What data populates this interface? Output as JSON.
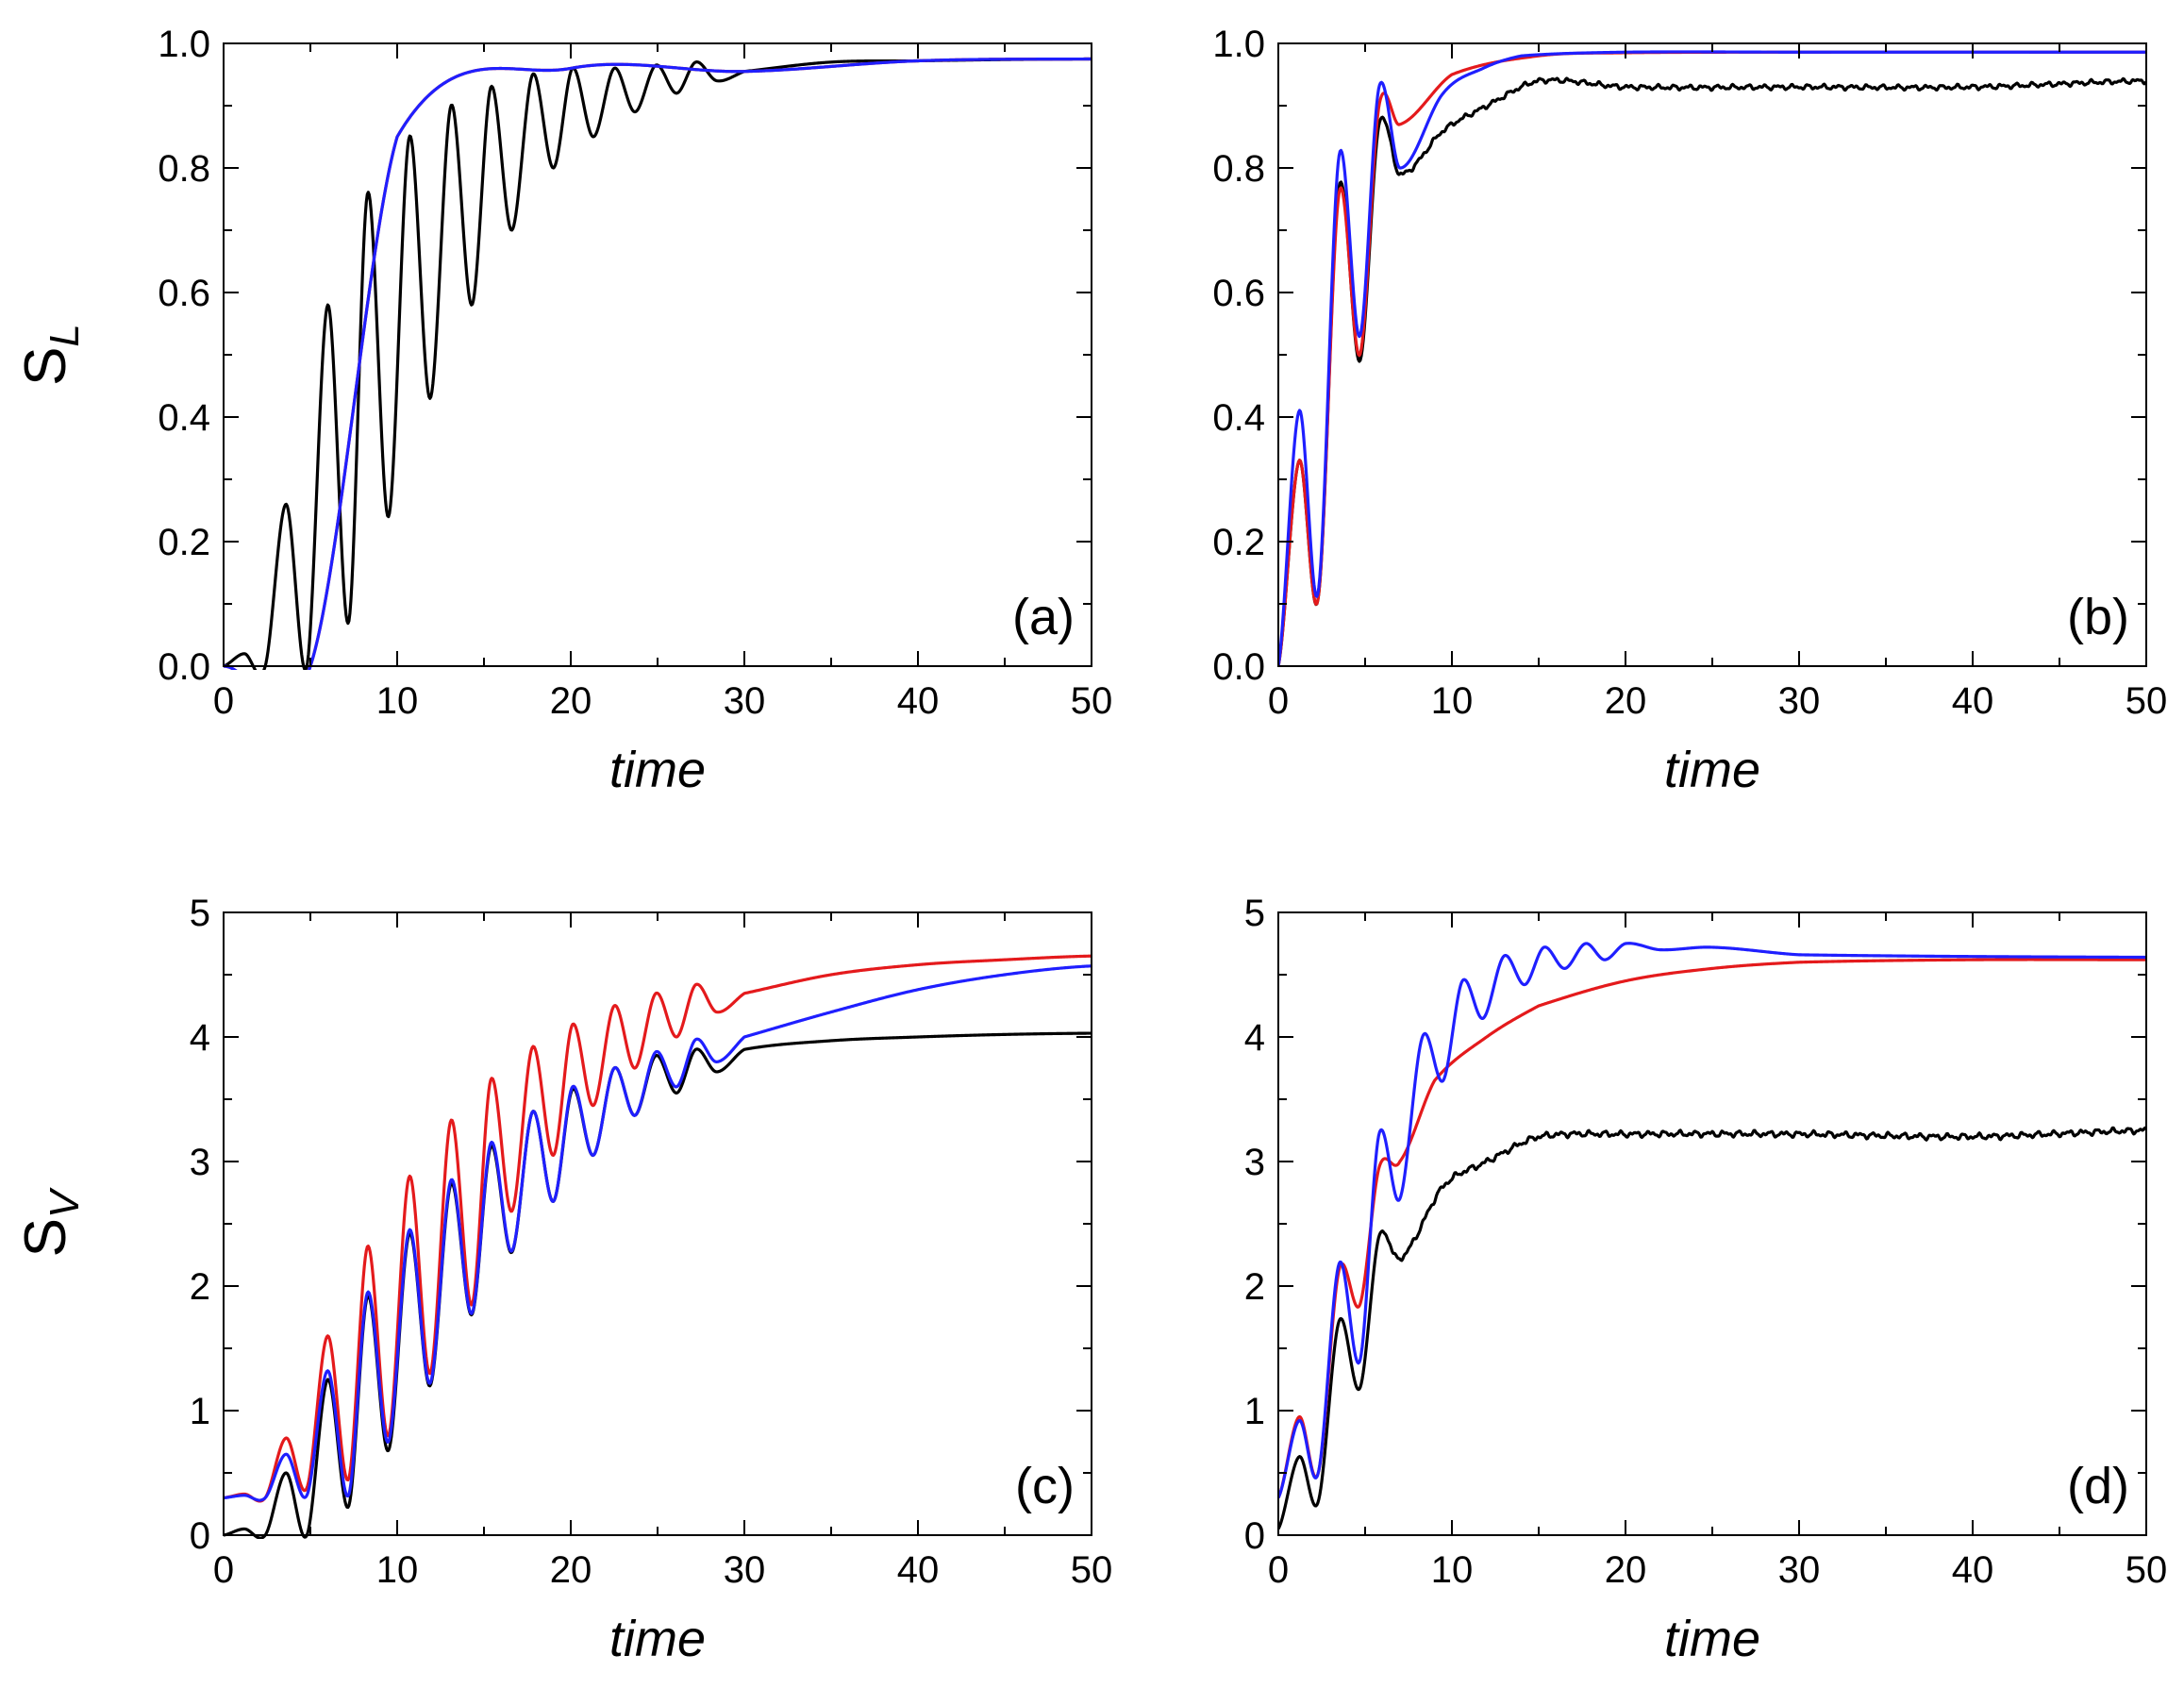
{
  "colors": {
    "series_black": "#000000",
    "series_red": "#e41a1c",
    "series_blue": "#1f1fff"
  },
  "chart_data": [
    {
      "panel": "(a)",
      "type": "line",
      "xlabel": "time",
      "ylabel": "S",
      "ylabel_subscript": "L",
      "xlim": [
        0,
        50
      ],
      "ylim": [
        0,
        1
      ],
      "xticks": [
        "0",
        "10",
        "20",
        "30",
        "40",
        "50"
      ],
      "yticks": [
        "0.0",
        "0.2",
        "0.4",
        "0.6",
        "0.8",
        "1.0"
      ],
      "model": {
        "kind": "oscillating",
        "period": 2.36,
        "phase_t": 1.22,
        "rise_tau": 4.8,
        "rise_delay": 2.5,
        "amp0": 0.78,
        "damp_tau": 4.6,
        "final": 0.975
      },
      "series": [
        {
          "name": "black",
          "color_key": "series_black",
          "scale": 1.0,
          "offset": 0.0,
          "x": [
            0,
            1.2,
            2.4,
            3.6,
            4.8,
            6.0,
            7.2,
            8.3,
            9.5,
            10.7,
            11.9,
            13.1,
            14.3,
            15.4,
            16.6,
            17.8,
            19.0,
            20.1,
            21.3,
            22.5,
            23.7,
            24.9,
            26.1,
            27.2,
            28.4,
            30,
            35,
            40,
            45,
            50
          ],
          "values": [
            0.0,
            0.02,
            0.0,
            0.26,
            0.0,
            0.58,
            0.07,
            0.76,
            0.24,
            0.85,
            0.43,
            0.9,
            0.58,
            0.93,
            0.7,
            0.95,
            0.8,
            0.96,
            0.85,
            0.96,
            0.89,
            0.965,
            0.92,
            0.97,
            0.94,
            0.955,
            0.97,
            0.972,
            0.974,
            0.975
          ]
        },
        {
          "name": "red",
          "color_key": "series_red",
          "scale": 1.0,
          "offset": 0.0,
          "x": [
            0,
            5,
            10,
            20,
            30,
            40,
            50
          ],
          "values": [
            0.0,
            0.0,
            0.85,
            0.96,
            0.955,
            0.972,
            0.975
          ]
        },
        {
          "name": "blue",
          "color_key": "series_blue",
          "scale": 1.0,
          "offset": 0.0,
          "x": [
            0,
            5,
            10,
            20,
            30,
            40,
            50
          ],
          "values": [
            0.0,
            0.0,
            0.85,
            0.96,
            0.955,
            0.972,
            0.975
          ]
        }
      ]
    },
    {
      "panel": "(b)",
      "type": "line",
      "xlabel": "time",
      "ylabel": "",
      "ylabel_subscript": "",
      "xlim": [
        0,
        50
      ],
      "ylim": [
        0,
        1
      ],
      "xticks": [
        "0",
        "10",
        "20",
        "30",
        "40",
        "50"
      ],
      "yticks": [
        "0.0",
        "0.2",
        "0.4",
        "0.6",
        "0.8",
        "1.0"
      ],
      "model": {
        "kind": "fast"
      },
      "series": [
        {
          "name": "black",
          "color_key": "series_black",
          "x": [
            0,
            1.2,
            2.3,
            3.5,
            4.7,
            5.8,
            7.0,
            9.5,
            12,
            15,
            20,
            30,
            40,
            50
          ],
          "values": [
            0.0,
            0.33,
            0.11,
            0.77,
            0.49,
            0.87,
            0.79,
            0.86,
            0.9,
            0.94,
            0.93,
            0.93,
            0.93,
            0.94
          ],
          "final": 0.935,
          "noise": 0.005
        },
        {
          "name": "red",
          "color_key": "series_red",
          "x": [
            0,
            1.2,
            2.3,
            3.5,
            4.7,
            5.8,
            7.0,
            10,
            15,
            20,
            30,
            50
          ],
          "values": [
            0.0,
            0.33,
            0.11,
            0.76,
            0.5,
            0.9,
            0.87,
            0.95,
            0.98,
            0.985,
            0.986,
            0.986
          ],
          "final": 0.986,
          "noise": 0
        },
        {
          "name": "blue",
          "color_key": "series_blue",
          "x": [
            0,
            1.2,
            2.3,
            3.5,
            4.7,
            5.8,
            7.0,
            9.5,
            11.8,
            14,
            20,
            30,
            50
          ],
          "values": [
            0.0,
            0.41,
            0.12,
            0.82,
            0.53,
            0.93,
            0.8,
            0.92,
            0.96,
            0.98,
            0.986,
            0.986,
            0.986
          ],
          "final": 0.986,
          "noise": 0
        }
      ]
    },
    {
      "panel": "(c)",
      "type": "line",
      "xlabel": "time",
      "ylabel": "S",
      "ylabel_subscript": "V",
      "xlim": [
        0,
        50
      ],
      "ylim": [
        0,
        5
      ],
      "xticks": [
        "0",
        "10",
        "20",
        "30",
        "40",
        "50"
      ],
      "yticks": [
        "0",
        "1",
        "2",
        "3",
        "4",
        "5"
      ],
      "model": {
        "kind": "oscillating_v"
      },
      "series": [
        {
          "name": "black",
          "color_key": "series_black",
          "x": [
            0,
            1.2,
            2.4,
            3.6,
            4.8,
            6.0,
            7.2,
            8.3,
            9.5,
            10.7,
            11.9,
            13.1,
            14.3,
            15.4,
            16.6,
            17.8,
            19.0,
            20.1,
            21.3,
            22.5,
            23.7,
            24.9,
            26.1,
            27.2,
            28.4,
            30,
            35,
            40,
            45,
            50
          ],
          "values": [
            0.0,
            0.05,
            0.0,
            0.5,
            0.0,
            1.25,
            0.23,
            1.92,
            0.68,
            2.42,
            1.2,
            2.82,
            1.77,
            3.12,
            2.27,
            3.4,
            2.68,
            3.58,
            3.05,
            3.75,
            3.37,
            3.85,
            3.55,
            3.9,
            3.72,
            3.9,
            3.97,
            4.0,
            4.02,
            4.03
          ]
        },
        {
          "name": "red",
          "color_key": "series_red",
          "x": [
            0,
            1.2,
            2.4,
            3.6,
            4.8,
            6.0,
            7.2,
            8.3,
            9.5,
            10.7,
            11.9,
            13.1,
            14.3,
            15.4,
            16.6,
            17.8,
            19.0,
            20.1,
            21.3,
            22.5,
            23.7,
            24.9,
            26.1,
            27.2,
            28.4,
            30,
            35,
            40,
            45,
            50
          ],
          "values": [
            0.3,
            0.33,
            0.3,
            0.78,
            0.38,
            1.6,
            0.45,
            2.32,
            0.8,
            2.88,
            1.3,
            3.33,
            1.85,
            3.66,
            2.6,
            3.92,
            3.05,
            4.1,
            3.45,
            4.25,
            3.75,
            4.35,
            4.0,
            4.42,
            4.2,
            4.35,
            4.5,
            4.58,
            4.62,
            4.65
          ]
        },
        {
          "name": "blue",
          "color_key": "series_blue",
          "x": [
            0,
            1.2,
            2.4,
            3.6,
            4.8,
            6.0,
            7.2,
            8.3,
            9.5,
            10.7,
            11.9,
            13.1,
            14.3,
            15.4,
            16.6,
            17.8,
            19.0,
            20.1,
            21.3,
            22.5,
            23.7,
            24.9,
            26.1,
            27.2,
            28.4,
            30,
            35,
            40,
            45,
            50
          ],
          "values": [
            0.3,
            0.32,
            0.3,
            0.65,
            0.32,
            1.32,
            0.32,
            1.95,
            0.75,
            2.45,
            1.22,
            2.85,
            1.78,
            3.15,
            2.28,
            3.4,
            2.68,
            3.6,
            3.05,
            3.75,
            3.37,
            3.88,
            3.6,
            3.98,
            3.8,
            4.0,
            4.2,
            4.38,
            4.5,
            4.57
          ]
        }
      ]
    },
    {
      "panel": "(d)",
      "type": "line",
      "xlabel": "time",
      "ylabel": "",
      "ylabel_subscript": "",
      "xlim": [
        0,
        50
      ],
      "ylim": [
        0,
        5
      ],
      "xticks": [
        "0",
        "10",
        "20",
        "30",
        "40",
        "50"
      ],
      "yticks": [
        "0",
        "1",
        "2",
        "3",
        "4",
        "5"
      ],
      "model": {
        "kind": "fast"
      },
      "series": [
        {
          "name": "black",
          "color_key": "series_black",
          "x": [
            0,
            1.2,
            2.3,
            3.5,
            4.7,
            5.8,
            7.0,
            9.5,
            12,
            15,
            20,
            30,
            40,
            50
          ],
          "values": [
            0.05,
            0.63,
            0.27,
            1.72,
            1.18,
            2.4,
            2.22,
            2.8,
            3.0,
            3.2,
            3.22,
            3.22,
            3.2,
            3.25
          ],
          "final": 3.22,
          "noise": 0.03
        },
        {
          "name": "red",
          "color_key": "series_red",
          "x": [
            0,
            1.2,
            2.3,
            3.5,
            4.7,
            5.8,
            7.0,
            9,
            12,
            15,
            20,
            25,
            30,
            40,
            50
          ],
          "values": [
            0.3,
            0.95,
            0.5,
            2.13,
            1.85,
            2.95,
            3.0,
            3.65,
            4.0,
            4.25,
            4.45,
            4.55,
            4.6,
            4.62,
            4.62
          ],
          "final": 4.62,
          "noise": 0
        },
        {
          "name": "blue",
          "color_key": "series_blue",
          "x": [
            0,
            1.2,
            2.3,
            3.5,
            4.7,
            5.8,
            7.0,
            8.3,
            9.5,
            10.6,
            11.8,
            13.0,
            14.2,
            15.3,
            16.5,
            17.7,
            18.8,
            20,
            22,
            25,
            30,
            50
          ],
          "values": [
            0.3,
            0.92,
            0.5,
            2.18,
            1.4,
            3.22,
            2.7,
            4.0,
            3.65,
            4.45,
            4.15,
            4.65,
            4.42,
            4.72,
            4.55,
            4.75,
            4.62,
            4.75,
            4.7,
            4.72,
            4.66,
            4.64
          ],
          "final": 4.64,
          "noise": 0
        }
      ]
    }
  ]
}
